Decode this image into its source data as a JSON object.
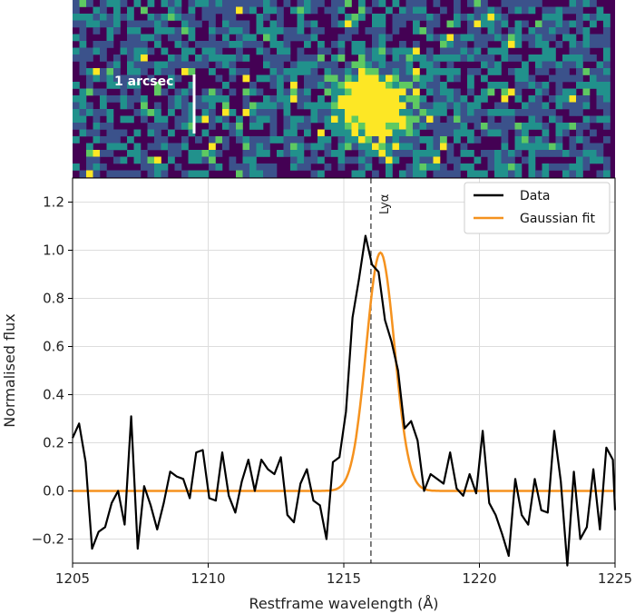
{
  "image_panel": {
    "scale_bar_label": "1 arcsec",
    "colormap": [
      "#440154",
      "#3b528b",
      "#21918c",
      "#5ec962",
      "#fde725"
    ]
  },
  "chart_data": {
    "type": "line",
    "xlabel": "Restframe wavelength (Å)",
    "ylabel": "Normalised flux",
    "xlim": [
      1205,
      1225
    ],
    "ylim": [
      -0.3,
      1.3
    ],
    "xticks": [
      1205,
      1210,
      1215,
      1220,
      1225
    ],
    "yticks": [
      -0.2,
      0.0,
      0.2,
      0.4,
      0.6,
      0.8,
      1.0,
      1.2
    ],
    "grid": true,
    "legend_position": "top-right",
    "reference_line": {
      "x": 1216,
      "label": "Lyα",
      "style": "dashed",
      "color": "#555555"
    },
    "series": [
      {
        "name": "Data",
        "color": "#000000",
        "x": [
          1205.0,
          1205.24,
          1205.48,
          1205.72,
          1205.96,
          1206.2,
          1206.44,
          1206.68,
          1206.92,
          1207.16,
          1207.4,
          1207.64,
          1207.88,
          1208.12,
          1208.36,
          1208.6,
          1208.84,
          1209.08,
          1209.32,
          1209.56,
          1209.8,
          1210.04,
          1210.28,
          1210.52,
          1210.76,
          1211.0,
          1211.24,
          1211.48,
          1211.72,
          1211.96,
          1212.2,
          1212.44,
          1212.68,
          1212.92,
          1213.16,
          1213.4,
          1213.64,
          1213.88,
          1214.12,
          1214.36,
          1214.6,
          1214.84,
          1215.08,
          1215.32,
          1215.56,
          1215.8,
          1216.04,
          1216.28,
          1216.52,
          1216.76,
          1217.0,
          1217.24,
          1217.48,
          1217.72,
          1217.96,
          1218.2,
          1218.44,
          1218.68,
          1218.92,
          1219.16,
          1219.4,
          1219.64,
          1219.88,
          1220.12,
          1220.36,
          1220.6,
          1220.84,
          1221.08,
          1221.32,
          1221.56,
          1221.8,
          1222.04,
          1222.28,
          1222.52,
          1222.76,
          1223.0,
          1223.24,
          1223.48,
          1223.72,
          1223.96,
          1224.2,
          1224.44,
          1224.68,
          1224.92,
          1225.0
        ],
        "y": [
          0.22,
          0.28,
          0.12,
          -0.24,
          -0.17,
          -0.15,
          -0.05,
          0.0,
          -0.14,
          0.31,
          -0.24,
          0.02,
          -0.06,
          -0.16,
          -0.05,
          0.08,
          0.06,
          0.05,
          -0.03,
          0.16,
          0.17,
          -0.03,
          -0.04,
          0.16,
          -0.02,
          -0.09,
          0.04,
          0.13,
          0.0,
          0.13,
          0.09,
          0.07,
          0.14,
          -0.1,
          -0.13,
          0.03,
          0.09,
          -0.04,
          -0.06,
          -0.2,
          0.12,
          0.14,
          0.33,
          0.72,
          0.88,
          1.06,
          0.94,
          0.91,
          0.71,
          0.62,
          0.5,
          0.26,
          0.29,
          0.21,
          0.0,
          0.07,
          0.05,
          0.03,
          0.16,
          0.01,
          -0.02,
          0.07,
          -0.01,
          0.25,
          -0.05,
          -0.1,
          -0.18,
          -0.27,
          0.05,
          -0.1,
          -0.14,
          0.05,
          -0.08,
          -0.09,
          0.25,
          0.04,
          -0.31,
          0.08,
          -0.2,
          -0.15,
          0.09,
          -0.16,
          0.18,
          0.13,
          -0.08
        ]
      },
      {
        "name": "Gaussian fit",
        "color": "#f5921e",
        "model": {
          "amplitude": 0.99,
          "center": 1216.35,
          "sigma": 0.52
        }
      }
    ]
  }
}
